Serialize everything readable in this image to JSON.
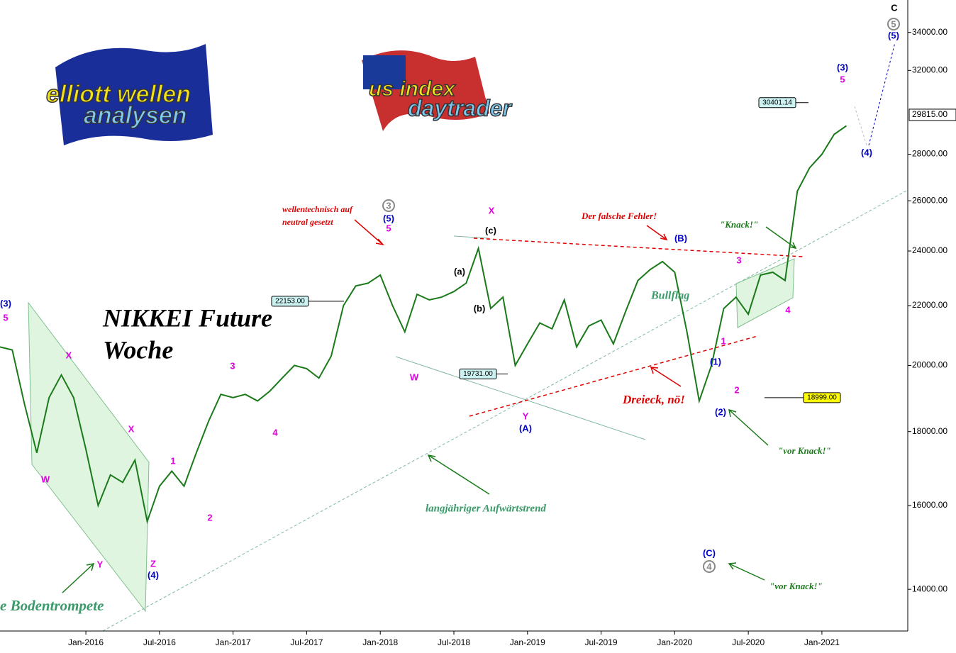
{
  "chart_data": {
    "type": "line",
    "x": [
      "2015-06",
      "2015-07",
      "2015-08",
      "2015-09",
      "2015-10",
      "2015-11",
      "2015-12",
      "2016-01",
      "2016-02",
      "2016-03",
      "2016-04",
      "2016-05",
      "2016-06",
      "2016-07",
      "2016-08",
      "2016-09",
      "2016-10",
      "2016-11",
      "2016-12",
      "2017-01",
      "2017-02",
      "2017-03",
      "2017-04",
      "2017-05",
      "2017-06",
      "2017-07",
      "2017-08",
      "2017-09",
      "2017-10",
      "2017-11",
      "2017-12",
      "2018-01",
      "2018-02",
      "2018-03",
      "2018-04",
      "2018-05",
      "2018-06",
      "2018-07",
      "2018-08",
      "2018-09",
      "2018-10",
      "2018-11",
      "2018-12",
      "2019-01",
      "2019-02",
      "2019-03",
      "2019-04",
      "2019-05",
      "2019-06",
      "2019-07",
      "2019-08",
      "2019-09",
      "2019-10",
      "2019-11",
      "2019-12",
      "2020-01",
      "2020-02",
      "2020-03",
      "2020-04",
      "2020-05",
      "2020-06",
      "2020-07",
      "2020-08",
      "2020-09",
      "2020-10",
      "2020-11",
      "2020-12",
      "2021-01",
      "2021-02",
      "2021-03"
    ],
    "series": [
      {
        "color": "#1a7a1a",
        "values": [
          20600,
          20500,
          18800,
          17400,
          19000,
          19700,
          19000,
          17500,
          16000,
          16800,
          16600,
          17200,
          15600,
          16500,
          16900,
          16500,
          17400,
          18300,
          19100,
          19000,
          19100,
          18900,
          19200,
          19600,
          20000,
          19900,
          19600,
          20300,
          22000,
          22700,
          22800,
          23100,
          22000,
          21100,
          22400,
          22200,
          22300,
          22500,
          22800,
          24100,
          21900,
          22300,
          20000,
          20700,
          21400,
          21200,
          22200,
          20600,
          21300,
          21500,
          20700,
          21800,
          22900,
          23300,
          23600,
          23200,
          21100,
          18900,
          20000,
          21900,
          22300,
          21700,
          23100,
          23200,
          22900,
          26400,
          27400,
          28000,
          28900,
          29300
        ]
      }
    ],
    "xlim": [
      "2015-06",
      "2021-08"
    ],
    "xticks": [
      {
        "value": "2016-01",
        "label": "Jan-2016"
      },
      {
        "value": "2016-07",
        "label": "Jul-2016"
      },
      {
        "value": "2017-01",
        "label": "Jan-2017"
      },
      {
        "value": "2017-07",
        "label": "Jul-2017"
      },
      {
        "value": "2018-01",
        "label": "Jan-2018"
      },
      {
        "value": "2018-07",
        "label": "Jul-2018"
      },
      {
        "value": "2019-01",
        "label": "Jan-2019"
      },
      {
        "value": "2019-07",
        "label": "Jul-2019"
      },
      {
        "value": "2020-01",
        "label": "Jan-2020"
      },
      {
        "value": "2020-07",
        "label": "Jul-2020"
      },
      {
        "value": "2021-01",
        "label": "Jan-2021"
      }
    ],
    "ylim": [
      13100,
      35800
    ],
    "log_scale": true,
    "yticks": [
      {
        "value": 14000,
        "label": "14000.00"
      },
      {
        "value": 16000,
        "label": "16000.00"
      },
      {
        "value": 18000,
        "label": "18000.00"
      },
      {
        "value": 20000,
        "label": "20000.00"
      },
      {
        "value": 22000,
        "label": "22000.00"
      },
      {
        "value": 24000,
        "label": "24000.00"
      },
      {
        "value": 26000,
        "label": "26000.00"
      },
      {
        "value": 28000,
        "label": "28000.00"
      },
      {
        "value": 32000,
        "label": "32000.00"
      },
      {
        "value": 34000,
        "label": "34000.00"
      }
    ],
    "last_price": {
      "value": 29815,
      "label": "29815.00"
    },
    "price_labels": [
      30401.14,
      {
        "value": 22153,
        "label": "22153.00"
      },
      {
        "value": 19731,
        "label": "19731.00"
      },
      {
        "value": 18999,
        "label": "18999.00"
      }
    ],
    "annotations": [
      {
        "text": "NIKKEI Future",
        "color": "#000000"
      },
      {
        "text": "Woche",
        "color": "#000000"
      },
      {
        "text": "wellentechnisch auf",
        "color": "#e00000"
      },
      {
        "text": "neutral gesetzt",
        "color": "#e00000"
      },
      {
        "text": "Der falsche Fehler!",
        "color": "#e00000"
      },
      {
        "text": "\"Knack!\"",
        "color": "#1a7a1a"
      },
      {
        "text": "Bullflag",
        "color": "#3a9a6a"
      },
      {
        "text": "Dreieck, nö!",
        "color": "#e00000"
      },
      {
        "text": "\"vor Knack!\"",
        "color": "#1a7a1a"
      },
      {
        "text": "\"vor Knack!\"",
        "color": "#1a7a1a"
      },
      {
        "text": "langjähriger Aufwärtstrend",
        "color": "#3a9a6a"
      },
      {
        "text": "e Bodentrompete",
        "color": "#3a9a6a"
      }
    ],
    "wave_labels": [
      {
        "text": "(3)",
        "color": "#0000cc"
      },
      {
        "text": "5",
        "color": "#e000e0"
      },
      {
        "text": "X",
        "color": "#e000e0"
      },
      {
        "text": "W",
        "color": "#e000e0"
      },
      {
        "text": "Y",
        "color": "#e000e0"
      },
      {
        "text": "X",
        "color": "#e000e0"
      },
      {
        "text": "Z",
        "color": "#e000e0"
      },
      {
        "text": "(4)",
        "color": "#0000cc"
      },
      {
        "text": "1",
        "color": "#e000e0"
      },
      {
        "text": "2",
        "color": "#e000e0"
      },
      {
        "text": "3",
        "color": "#e000e0"
      },
      {
        "text": "4",
        "color": "#e000e0"
      },
      {
        "text": "(5)",
        "color": "#0000cc"
      },
      {
        "text": "5",
        "color": "#e000e0"
      },
      {
        "text": "W",
        "color": "#e000e0"
      },
      {
        "text": "X",
        "color": "#e000e0"
      },
      {
        "text": "(c)",
        "color": "#000000"
      },
      {
        "text": "(a)",
        "color": "#000000"
      },
      {
        "text": "(b)",
        "color": "#000000"
      },
      {
        "text": "Y",
        "color": "#e000e0"
      },
      {
        "text": "(A)",
        "color": "#0000cc"
      },
      {
        "text": "(B)",
        "color": "#0000cc"
      },
      {
        "text": "(C)",
        "color": "#0000cc"
      },
      {
        "text": "(1)",
        "color": "#0000cc"
      },
      {
        "text": "(2)",
        "color": "#0000cc"
      },
      {
        "text": "1",
        "color": "#e000e0"
      },
      {
        "text": "2",
        "color": "#e000e0"
      },
      {
        "text": "3",
        "color": "#e000e0"
      },
      {
        "text": "4",
        "color": "#e000e0"
      },
      {
        "text": "(3)",
        "color": "#0000cc"
      },
      {
        "text": "5",
        "color": "#e000e0"
      },
      {
        "text": "(4)",
        "color": "#0000cc"
      },
      {
        "text": "C",
        "color": "#000000"
      },
      {
        "text": "(5)",
        "color": "#0000cc"
      }
    ],
    "circled_labels": [
      "3",
      "4",
      "5"
    ],
    "logos": [
      "elliott wellen",
      "analysen",
      "us index",
      "daytrader"
    ]
  }
}
